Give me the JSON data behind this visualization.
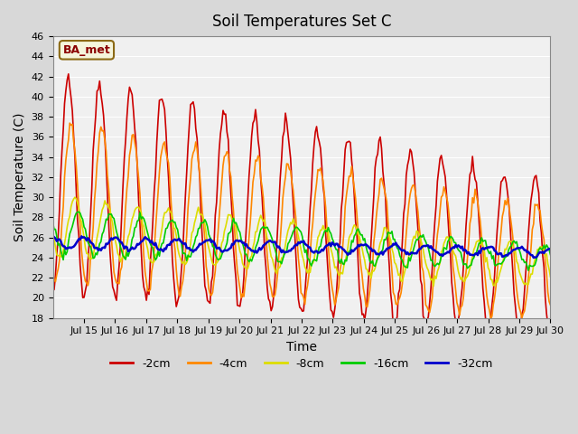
{
  "title": "Soil Temperatures Set C",
  "xlabel": "Time",
  "ylabel": "Soil Temperature (C)",
  "ylim": [
    18,
    46
  ],
  "yticks": [
    18,
    20,
    22,
    24,
    26,
    28,
    30,
    32,
    34,
    36,
    38,
    40,
    42,
    44,
    46
  ],
  "background_color": "#d8d8d8",
  "plot_bg_color": "#f0f0f0",
  "series": {
    "-2cm": {
      "color": "#cc0000",
      "lw": 1.2
    },
    "-4cm": {
      "color": "#ff8800",
      "lw": 1.2
    },
    "-8cm": {
      "color": "#dddd00",
      "lw": 1.2
    },
    "-16cm": {
      "color": "#00cc00",
      "lw": 1.2
    },
    "-32cm": {
      "color": "#0000cc",
      "lw": 1.8
    }
  },
  "xtick_labels": [
    "Jul 15",
    "Jul 16",
    "Jul 17",
    "Jul 18",
    "Jul 19",
    "Jul 20",
    "Jul 21",
    "Jul 22",
    "Jul 23",
    "Jul 24",
    "Jul 25",
    "Jul 26",
    "Jul 27",
    "Jul 28",
    "Jul 29",
    "Jul 30"
  ],
  "days": 16,
  "points_per_day": 24
}
